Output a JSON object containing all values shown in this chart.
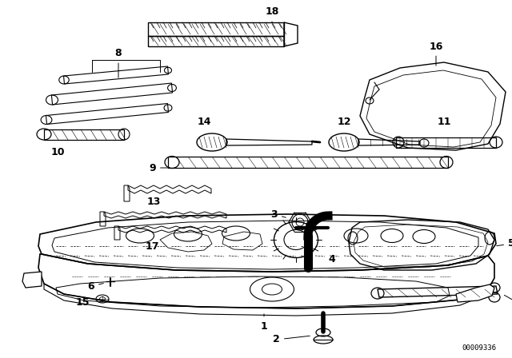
{
  "bg_color": "#ffffff",
  "line_color": "#000000",
  "diagram_id": "00009336"
}
